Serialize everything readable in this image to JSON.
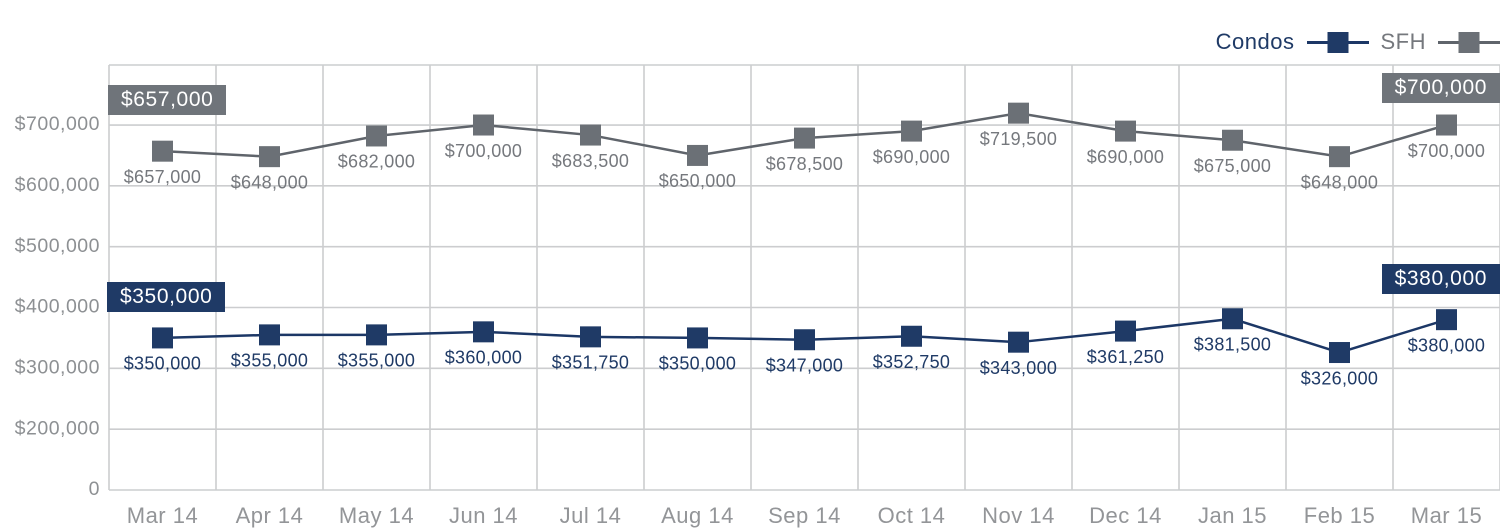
{
  "chart_data": {
    "type": "line",
    "title": "",
    "categories": [
      "Mar 14",
      "Apr 14",
      "May 14",
      "Jun 14",
      "Jul 14",
      "Aug 14",
      "Sep 14",
      "Oct 14",
      "Nov 14",
      "Dec 14",
      "Jan 15",
      "Feb 15",
      "Mar 15"
    ],
    "series": [
      {
        "name": "Condos",
        "color": "#1f3a66",
        "line_color": "#1c3766",
        "label_color": "#1f3a66",
        "values": [
          350000,
          355000,
          355000,
          360000,
          351750,
          350000,
          347000,
          352750,
          343000,
          361250,
          381500,
          326000,
          380000
        ],
        "point_labels": [
          "$350,000",
          "$355,000",
          "$355,000",
          "$360,000",
          "$351,750",
          "$350,000",
          "$347,000",
          "$352,750",
          "$343,000",
          "$361,250",
          "$381,500",
          "$326,000",
          "$380,000"
        ]
      },
      {
        "name": "SFH",
        "color": "#6b7076",
        "line_color": "#5f646b",
        "label_color": "#75787d",
        "values": [
          657000,
          648000,
          682000,
          700000,
          683500,
          650000,
          678500,
          690000,
          719500,
          690000,
          675000,
          648000,
          700000
        ],
        "point_labels": [
          "$657,000",
          "$648,000",
          "$682,000",
          "$700,000",
          "$683,500",
          "$650,000",
          "$678,500",
          "$690,000",
          "$719,500",
          "$690,000",
          "$675,000",
          "$648,000",
          "$700,000"
        ]
      }
    ],
    "y_ticks": [
      {
        "label": "$700,000",
        "value": 700000
      },
      {
        "label": "$600,000",
        "value": 600000
      },
      {
        "label": "$500,000",
        "value": 500000
      },
      {
        "label": "$400,000",
        "value": 400000
      },
      {
        "label": "$300,000",
        "value": 300000
      },
      {
        "label": "$200,000",
        "value": 200000
      },
      {
        "label": "0",
        "value": 0
      }
    ],
    "ylim": [
      0,
      800000
    ],
    "grid": true,
    "legend_position": "top-right",
    "axis_note": "bottom segment compressed: single grid row spans 0 to 200,000"
  },
  "callouts": {
    "sfh_start": "$657,000",
    "sfh_end": "$700,000",
    "condos_start": "$350,000",
    "condos_end": "$380,000"
  },
  "colors": {
    "condos_navy": "#1f3a66",
    "sfh_gray": "#6b7076",
    "callout_gray_bg": "#6f747a",
    "callout_navy_bg": "#1f3a66",
    "gridline": "#cccdcf",
    "y_label": "#8d9093",
    "x_label": "#939598",
    "background": "#ffffff"
  }
}
